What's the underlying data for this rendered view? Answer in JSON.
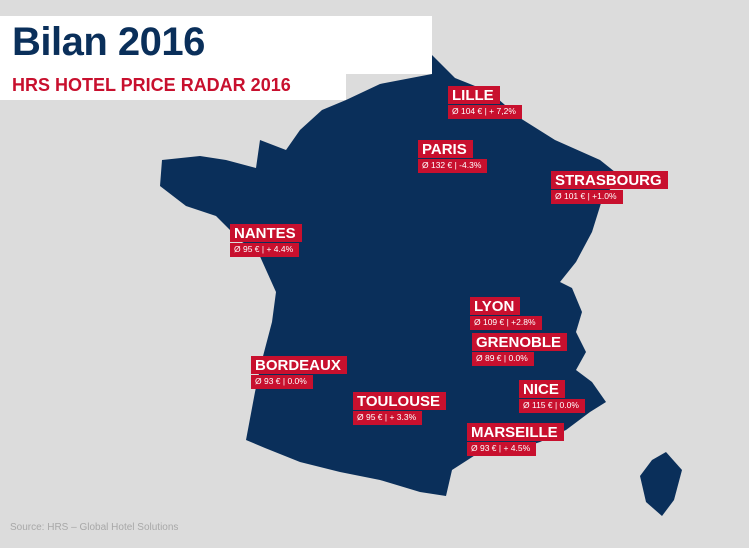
{
  "header": {
    "title": "Bilan 2016",
    "subtitle": "HRS HOTEL PRICE RADAR 2016"
  },
  "colors": {
    "map": "#0a2f5a",
    "label": "#c8102e",
    "background": "#dcdcdc"
  },
  "cities": [
    {
      "name": "LILLE",
      "value": "Ø 104 € | + 7,2%"
    },
    {
      "name": "PARIS",
      "value": "Ø 132 € | -4.3%"
    },
    {
      "name": "STRASBOURG",
      "value": "Ø 101 € | +1.0%"
    },
    {
      "name": "NANTES",
      "value": "Ø 95 € | + 4.4%"
    },
    {
      "name": "LYON",
      "value": "Ø 109 € | +2.8%"
    },
    {
      "name": "GRENOBLE",
      "value": "Ø 89 € | 0.0%"
    },
    {
      "name": "BORDEAUX",
      "value": "Ø 93 € | 0.0%"
    },
    {
      "name": "NICE",
      "value": "Ø 115 € |   0.0%"
    },
    {
      "name": "TOULOUSE",
      "value": "Ø 95 € | + 3.3%"
    },
    {
      "name": "MARSEILLE",
      "value": "Ø 93 € | + 4.5%"
    }
  ],
  "source": "Source: HRS – Global Hotel Solutions"
}
